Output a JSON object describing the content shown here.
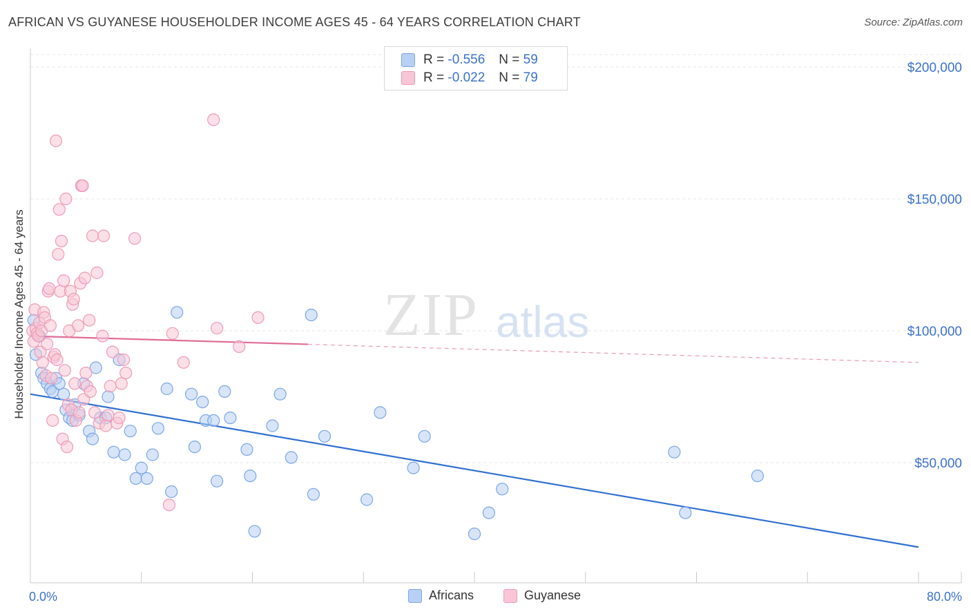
{
  "chart_data": {
    "type": "scatter",
    "title": "AFRICAN VS GUYANESE HOUSEHOLDER INCOME AGES 45 - 64 YEARS CORRELATION CHART",
    "source": "Source: ZipAtlas.com",
    "xlabel": "",
    "ylabel": "Householder Income Ages 45 - 64 years",
    "xlim": [
      0,
      80
    ],
    "ylim": [
      0,
      210000
    ],
    "x_tick_labels": [
      "0.0%",
      "80.0%"
    ],
    "y_tick_labels": [
      "$50,000",
      "$100,000",
      "$150,000",
      "$200,000"
    ],
    "y_tick_values": [
      50000,
      100000,
      150000,
      200000
    ],
    "watermark": "ZIPatlas",
    "legend": {
      "r_label": "R =",
      "n_label": "N =",
      "entries": [
        {
          "name": "Africans",
          "r": "-0.556",
          "n": "59"
        },
        {
          "name": "Guyanese",
          "r": "-0.022",
          "n": "79"
        }
      ]
    },
    "series": [
      {
        "name": "Africans",
        "color": "#7aa6e6",
        "fill": "#b8d0f4",
        "line_color": "#2f6fd0",
        "trend": {
          "x0": 0,
          "y0": 76000,
          "x1": 80,
          "y1": 18000,
          "solid_until": 80
        },
        "points": [
          [
            0.3,
            104000
          ],
          [
            0.5,
            91000
          ],
          [
            0.8,
            98000
          ],
          [
            1.0,
            84000
          ],
          [
            1.2,
            82000
          ],
          [
            1.5,
            80000
          ],
          [
            1.8,
            78000
          ],
          [
            2.0,
            77000
          ],
          [
            2.3,
            82000
          ],
          [
            2.6,
            80000
          ],
          [
            3.0,
            76000
          ],
          [
            3.2,
            70000
          ],
          [
            3.5,
            67000
          ],
          [
            3.8,
            66000
          ],
          [
            4.0,
            72000
          ],
          [
            4.4,
            68000
          ],
          [
            4.8,
            80000
          ],
          [
            5.3,
            62000
          ],
          [
            5.6,
            59000
          ],
          [
            5.9,
            86000
          ],
          [
            6.3,
            67000
          ],
          [
            6.8,
            67000
          ],
          [
            7.0,
            75000
          ],
          [
            7.5,
            54000
          ],
          [
            8.0,
            89000
          ],
          [
            8.5,
            53000
          ],
          [
            9.0,
            62000
          ],
          [
            9.5,
            44000
          ],
          [
            10.0,
            48000
          ],
          [
            10.5,
            44000
          ],
          [
            11.0,
            53000
          ],
          [
            11.5,
            63000
          ],
          [
            12.3,
            78000
          ],
          [
            12.7,
            39000
          ],
          [
            13.2,
            107000
          ],
          [
            14.5,
            76000
          ],
          [
            14.8,
            56000
          ],
          [
            15.5,
            73000
          ],
          [
            15.8,
            66000
          ],
          [
            16.5,
            66000
          ],
          [
            16.8,
            43000
          ],
          [
            17.5,
            77000
          ],
          [
            18.0,
            67000
          ],
          [
            19.5,
            55000
          ],
          [
            19.8,
            45000
          ],
          [
            20.2,
            24000
          ],
          [
            21.8,
            64000
          ],
          [
            22.5,
            76000
          ],
          [
            23.5,
            52000
          ],
          [
            25.3,
            106000
          ],
          [
            25.5,
            38000
          ],
          [
            26.5,
            60000
          ],
          [
            30.3,
            36000
          ],
          [
            31.5,
            69000
          ],
          [
            34.5,
            48000
          ],
          [
            35.5,
            60000
          ],
          [
            40.0,
            23000
          ],
          [
            41.3,
            31000
          ],
          [
            42.5,
            40000
          ],
          [
            58.0,
            54000
          ],
          [
            59.0,
            31000
          ],
          [
            65.5,
            45000
          ]
        ]
      },
      {
        "name": "Guyanese",
        "color": "#ee9ab6",
        "fill": "#f8c6d6",
        "line_color": "#e06c96",
        "trend": {
          "x0": 0,
          "y0": 98000,
          "x1": 80,
          "y1": 88000,
          "solid_until": 25
        },
        "points": [
          [
            0.2,
            100000
          ],
          [
            0.3,
            96000
          ],
          [
            0.4,
            108000
          ],
          [
            0.5,
            101000
          ],
          [
            0.6,
            99000
          ],
          [
            0.7,
            98000
          ],
          [
            0.8,
            103000
          ],
          [
            0.9,
            92000
          ],
          [
            1.0,
            100000
          ],
          [
            1.1,
            88000
          ],
          [
            1.2,
            107000
          ],
          [
            1.3,
            105000
          ],
          [
            1.4,
            83000
          ],
          [
            1.5,
            95000
          ],
          [
            1.6,
            115000
          ],
          [
            1.7,
            116000
          ],
          [
            1.8,
            102000
          ],
          [
            1.9,
            82000
          ],
          [
            2.0,
            66000
          ],
          [
            2.1,
            90000
          ],
          [
            2.2,
            91000
          ],
          [
            2.3,
            172000
          ],
          [
            2.4,
            89000
          ],
          [
            2.5,
            129000
          ],
          [
            2.6,
            146000
          ],
          [
            2.7,
            115000
          ],
          [
            2.8,
            134000
          ],
          [
            2.9,
            59000
          ],
          [
            3.0,
            119000
          ],
          [
            3.1,
            85000
          ],
          [
            3.2,
            150000
          ],
          [
            3.3,
            56000
          ],
          [
            3.4,
            72000
          ],
          [
            3.5,
            100000
          ],
          [
            3.6,
            115000
          ],
          [
            3.7,
            70000
          ],
          [
            3.8,
            110000
          ],
          [
            3.9,
            112000
          ],
          [
            4.0,
            80000
          ],
          [
            4.1,
            66000
          ],
          [
            4.3,
            102000
          ],
          [
            4.4,
            69000
          ],
          [
            4.5,
            118000
          ],
          [
            4.6,
            155000
          ],
          [
            4.7,
            155000
          ],
          [
            4.8,
            74000
          ],
          [
            4.9,
            120000
          ],
          [
            5.0,
            84000
          ],
          [
            5.1,
            79000
          ],
          [
            5.3,
            104000
          ],
          [
            5.4,
            77000
          ],
          [
            5.6,
            136000
          ],
          [
            5.8,
            69000
          ],
          [
            6.0,
            122000
          ],
          [
            6.2,
            65000
          ],
          [
            6.5,
            98000
          ],
          [
            6.6,
            136000
          ],
          [
            6.8,
            64000
          ],
          [
            7.0,
            68000
          ],
          [
            7.2,
            79000
          ],
          [
            7.4,
            92000
          ],
          [
            7.8,
            65000
          ],
          [
            8.0,
            67000
          ],
          [
            8.2,
            80000
          ],
          [
            8.4,
            89000
          ],
          [
            8.6,
            84000
          ],
          [
            9.4,
            135000
          ],
          [
            12.5,
            34000
          ],
          [
            12.8,
            99000
          ],
          [
            13.8,
            88000
          ],
          [
            16.5,
            180000
          ],
          [
            16.8,
            101000
          ],
          [
            18.8,
            94000
          ],
          [
            20.5,
            105000
          ]
        ]
      }
    ]
  }
}
